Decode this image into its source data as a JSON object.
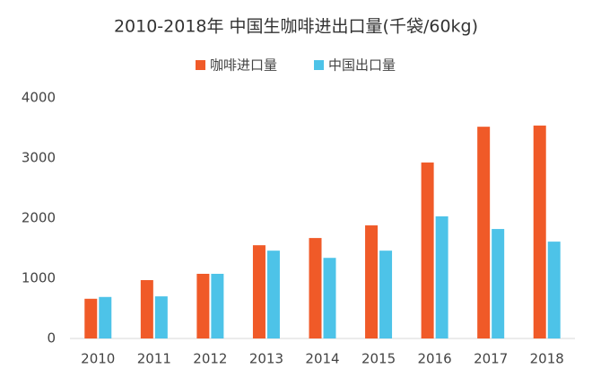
{
  "chart_data": {
    "type": "bar",
    "title": "2010-2018年 中国生咖啡进出口量(千袋/60kg)",
    "categories": [
      "2010",
      "2011",
      "2012",
      "2013",
      "2014",
      "2015",
      "2016",
      "2017",
      "2018"
    ],
    "series": [
      {
        "name": "咖啡进口量",
        "color": "#f05a28",
        "values": [
          660,
          970,
          1075,
          1550,
          1670,
          1880,
          2925,
          3520,
          3540
        ]
      },
      {
        "name": "中国出口量",
        "color": "#4dc3e8",
        "values": [
          690,
          700,
          1075,
          1460,
          1340,
          1460,
          2030,
          1820,
          1610
        ]
      }
    ],
    "ylim": [
      0,
      4000
    ],
    "yticks": [
      0,
      1000,
      2000,
      3000,
      4000
    ],
    "grid": false,
    "legend": "top"
  }
}
